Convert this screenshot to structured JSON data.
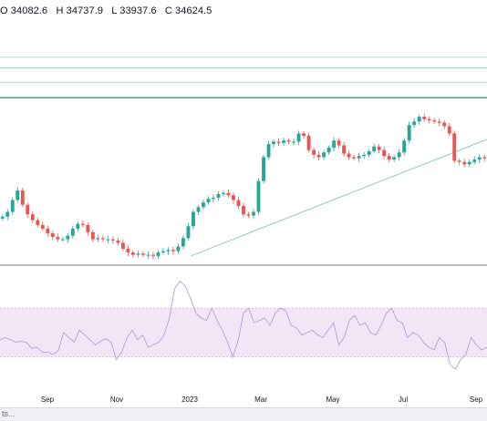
{
  "ohlc": {
    "open": "O 34082.6",
    "high": "H 34737.9",
    "low": "L 33937.6",
    "close": "C 34624.5"
  },
  "footer_text": "ts...",
  "colors": {
    "up": "#26a69a",
    "down": "#ef5350",
    "level_line": "#2a9d7a",
    "trend_line": "#7fc8b3",
    "rsi_band": "#f3e5f5",
    "rsi_line": "#b39ddb",
    "separator": "#6f7380"
  },
  "chart_data": [
    {
      "type": "candlestick",
      "x_tick_labels": [
        "Sep",
        "Nov",
        "2023",
        "Mar",
        "May",
        "Jul",
        "Sep"
      ],
      "price_series": [
        30200,
        30400,
        30900,
        31300,
        30700,
        30300,
        30050,
        29850,
        29700,
        29500,
        29350,
        29250,
        29250,
        29400,
        29700,
        29900,
        29850,
        29550,
        29250,
        29300,
        29250,
        29250,
        29200,
        29100,
        28850,
        28700,
        28600,
        28650,
        28600,
        28600,
        28550,
        28700,
        28750,
        28800,
        28750,
        28950,
        29300,
        29800,
        30400,
        30600,
        30800,
        30950,
        31000,
        31150,
        31200,
        31100,
        30900,
        30650,
        30300,
        30250,
        30400,
        31700,
        32700,
        33250,
        33350,
        33300,
        33400,
        33350,
        33350,
        33700,
        33600,
        33000,
        32800,
        32700,
        32900,
        33100,
        33400,
        33200,
        32850,
        32700,
        32650,
        32750,
        32800,
        32950,
        33150,
        33000,
        32750,
        32600,
        32700,
        32900,
        33400,
        34050,
        34200,
        34400,
        34300,
        34250,
        34200,
        34150,
        34000,
        33700,
        32550,
        32500,
        32400,
        32500,
        32600,
        32700,
        32650
      ],
      "levels": [
        36900,
        36450,
        35850,
        35200
      ],
      "rsi_values": [
        44,
        46,
        44,
        42,
        43,
        42,
        37,
        38,
        34,
        34,
        32,
        35,
        50,
        46,
        42,
        52,
        48,
        44,
        40,
        43,
        45,
        42,
        28,
        34,
        46,
        52,
        44,
        48,
        38,
        40,
        42,
        48,
        62,
        86,
        92,
        88,
        78,
        66,
        62,
        60,
        70,
        60,
        52,
        42,
        30,
        44,
        66,
        70,
        58,
        60,
        62,
        56,
        66,
        70,
        68,
        56,
        54,
        48,
        50,
        52,
        48,
        46,
        52,
        58,
        40,
        46,
        60,
        64,
        56,
        58,
        50,
        48,
        56,
        66,
        70,
        60,
        58,
        46,
        50,
        48,
        42,
        38,
        36,
        46,
        42,
        24,
        20,
        28,
        32,
        46,
        40,
        36,
        38
      ],
      "rsi_band": [
        30,
        70
      ]
    }
  ]
}
